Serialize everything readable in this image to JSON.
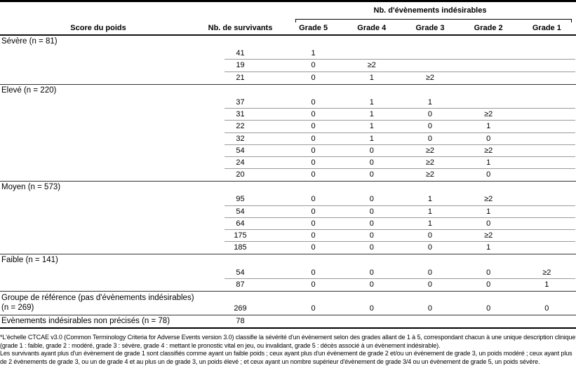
{
  "table": {
    "spanning_header": "Nb. d'évènements indésirables",
    "columns": [
      "Score du poids",
      "Nb. de survivants",
      "Grade 5",
      "Grade 4",
      "Grade 3",
      "Grade 2",
      "Grade 1"
    ],
    "groups": [
      {
        "type": "standard",
        "label": "Sévère (n = 81)",
        "rows": [
          [
            "41",
            "1",
            "",
            "",
            "",
            ""
          ],
          [
            "19",
            "0",
            "≥2",
            "",
            "",
            ""
          ],
          [
            "21",
            "0",
            "1",
            "≥2",
            "",
            ""
          ]
        ]
      },
      {
        "type": "standard",
        "label": "Elevé (n = 220)",
        "rows": [
          [
            "37",
            "0",
            "1",
            "1",
            "",
            ""
          ],
          [
            "31",
            "0",
            "1",
            "0",
            "≥2",
            ""
          ],
          [
            "22",
            "0",
            "1",
            "0",
            "1",
            ""
          ],
          [
            "32",
            "0",
            "1",
            "0",
            "0",
            ""
          ],
          [
            "54",
            "0",
            "0",
            "≥2",
            "≥2",
            ""
          ],
          [
            "24",
            "0",
            "0",
            "≥2",
            "1",
            ""
          ],
          [
            "20",
            "0",
            "0",
            "≥2",
            "0",
            ""
          ]
        ]
      },
      {
        "type": "standard",
        "label": "Moyen (n = 573)",
        "rows": [
          [
            "95",
            "0",
            "0",
            "1",
            "≥2",
            ""
          ],
          [
            "54",
            "0",
            "0",
            "1",
            "1",
            ""
          ],
          [
            "64",
            "0",
            "0",
            "1",
            "0",
            ""
          ],
          [
            "175",
            "0",
            "0",
            "0",
            "≥2",
            ""
          ],
          [
            "185",
            "0",
            "0",
            "0",
            "1",
            ""
          ]
        ]
      },
      {
        "type": "standard",
        "label": "Faible (n = 141)",
        "rows": [
          [
            "54",
            "0",
            "0",
            "0",
            "0",
            "≥2"
          ],
          [
            "87",
            "0",
            "0",
            "0",
            "0",
            "1"
          ]
        ]
      },
      {
        "type": "two_line",
        "label": "Groupe de référence (pas d'évènements indésirables)",
        "label_line2": "(n = 269)",
        "rows": [
          [
            "269",
            "0",
            "0",
            "0",
            "0",
            "0"
          ]
        ]
      },
      {
        "type": "inline",
        "label": "Evènements indésirables non précisés (n = 78)",
        "rows": [
          [
            "78",
            "",
            "",
            "",
            "",
            ""
          ]
        ]
      }
    ]
  },
  "footnotes": [
    "*L'échelle CTCAE v3.0 (Common Terminology Criteria for Adverse Events version 3.0) classifie la sévérité d'un évènement selon des grades allant de 1 à 5, correspondant chacun à une unique description clinique (grade 1 : faible, grade 2 : modéré, grade 3 : sévère, grade 4 : mettant le pronostic vital en jeu, ou invalidant, grade 5 : décès associé à un évènement indésirable).",
    "Les survivants ayant plus d'un évènement de grade 1 sont classifiés comme ayant un faible poids ; ceux ayant plus d'un évènement de grade 2 et/ou un évènement de grade 3, un poids modéré ; ceux ayant plus de 2 évènements de grade 3, ou un de grade 4 et au plus un de grade 3, un poids élevé ; et ceux ayant un nombre supérieur d'évènement de grade 3/4 ou un évènement de grade 5, un poids sévère."
  ]
}
